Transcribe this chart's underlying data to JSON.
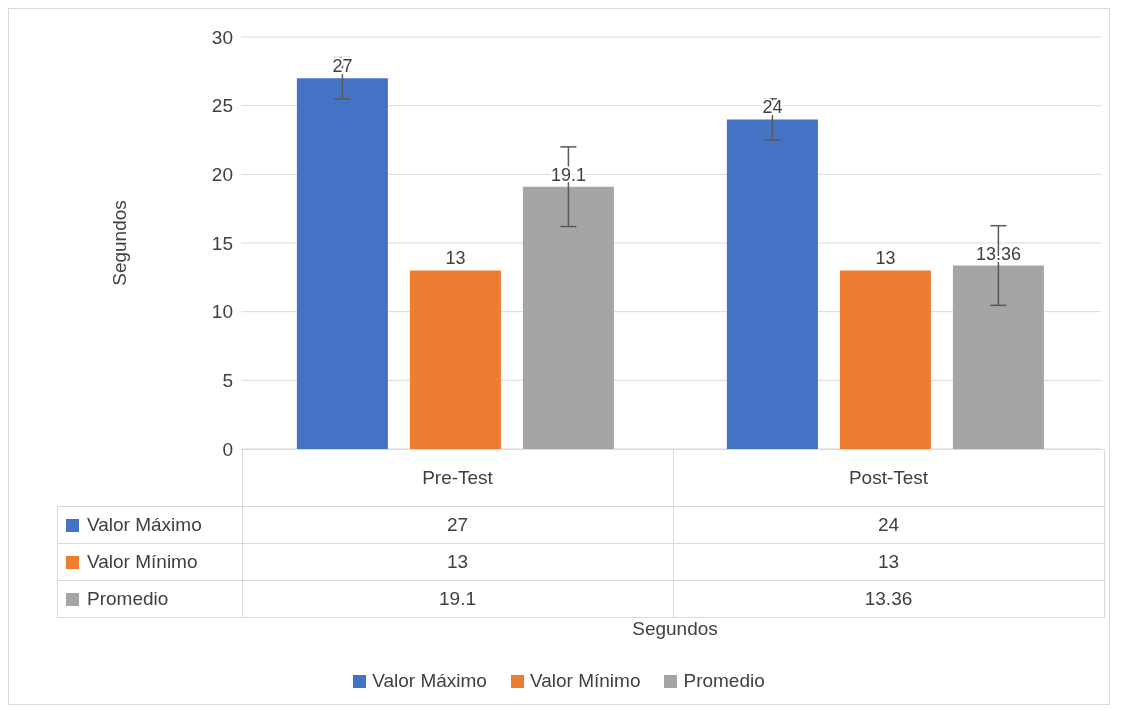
{
  "chart_data": {
    "type": "bar",
    "ylabel": "Segundos",
    "annotations": [
      "27",
      "24",
      "13",
      "13",
      "19.1",
      "13.36",
      "Segundos"
    ],
    "categories": [
      "Pre-Test",
      "Post-Test"
    ],
    "series": [
      {
        "name": "Valor Máximo",
        "color": "#4472c4",
        "values": [
          27,
          24
        ],
        "errors": [
          1.5,
          1.5
        ],
        "value_labels": [
          "27",
          "24"
        ]
      },
      {
        "name": "Valor Mínimo",
        "color": "#ed7d31",
        "values": [
          13,
          13
        ],
        "errors": [
          0,
          0
        ],
        "value_labels": [
          "13",
          "13"
        ]
      },
      {
        "name": "Promedio",
        "color": "#a5a5a5",
        "values": [
          19.1,
          13.36
        ],
        "errors": [
          2.9,
          2.9
        ],
        "value_labels": [
          "19.1",
          "13.36"
        ]
      }
    ],
    "ylim": [
      0,
      30
    ],
    "yticks": [
      0,
      5,
      10,
      15,
      20,
      25,
      30
    ],
    "grid": "y",
    "legend": "bottom"
  }
}
